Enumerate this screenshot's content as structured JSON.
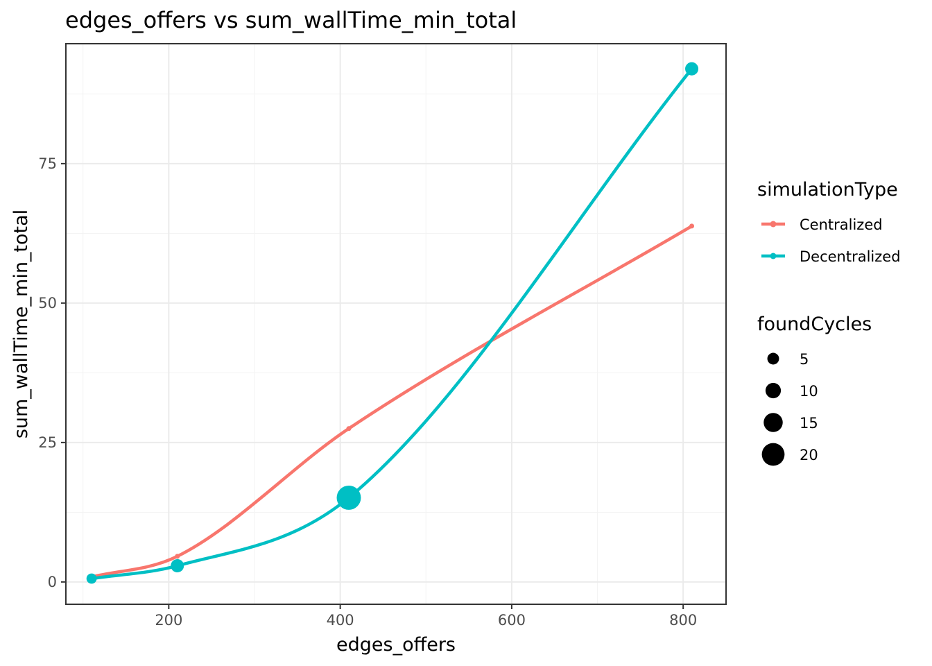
{
  "chart_data": {
    "type": "line",
    "title": "edges_offers  vs  sum_wallTime_min_total",
    "xlabel": "edges_offers",
    "ylabel": "sum_wallTime_min_total",
    "xlim": [
      80,
      850
    ],
    "ylim": [
      -4,
      96.5
    ],
    "x_ticks": [
      200,
      400,
      600,
      800
    ],
    "y_ticks": [
      0,
      25,
      50,
      75
    ],
    "grid": true,
    "legend_position": "right",
    "series": [
      {
        "name": "Centralized",
        "color": "#F8766D",
        "points": [
          {
            "x": 110,
            "y": 0.9,
            "foundCycles": 0
          },
          {
            "x": 210,
            "y": 4.6,
            "foundCycles": 0
          },
          {
            "x": 410,
            "y": 27.5,
            "foundCycles": 0
          },
          {
            "x": 810,
            "y": 63.8,
            "foundCycles": 0
          }
        ]
      },
      {
        "name": "Decentralized",
        "color": "#00BFC4",
        "points": [
          {
            "x": 110,
            "y": 0.6,
            "foundCycles": 3
          },
          {
            "x": 210,
            "y": 2.9,
            "foundCycles": 7
          },
          {
            "x": 410,
            "y": 15.1,
            "foundCycles": 22
          },
          {
            "x": 810,
            "y": 92.0,
            "foundCycles": 7
          }
        ]
      }
    ],
    "legend_color": {
      "title": "simulationType",
      "entries": [
        "Centralized",
        "Decentralized"
      ]
    },
    "legend_size": {
      "title": "foundCycles",
      "entries": [
        5,
        10,
        15,
        20
      ]
    }
  }
}
